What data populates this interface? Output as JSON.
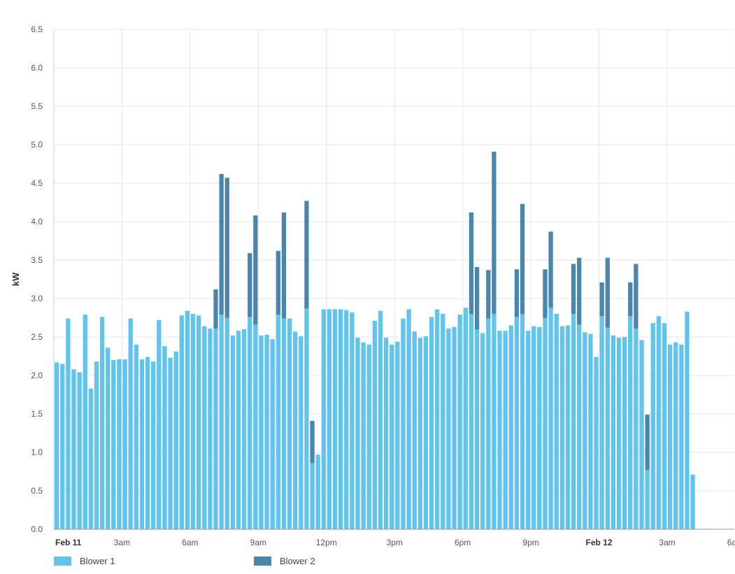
{
  "chart_data": {
    "type": "bar",
    "stacked": true,
    "title": "",
    "ylabel": "kW",
    "xlabel": "",
    "ylim": [
      0,
      6.5
    ],
    "yticks": [
      "0.0",
      "0.5",
      "1.0",
      "1.5",
      "2.0",
      "2.5",
      "3.0",
      "3.5",
      "4.0",
      "4.5",
      "5.0",
      "5.5",
      "6.0",
      "6.5"
    ],
    "xticks": [
      {
        "label": "Feb 11",
        "bold": true
      },
      {
        "label": "3am",
        "bold": false
      },
      {
        "label": "6am",
        "bold": false
      },
      {
        "label": "9am",
        "bold": false
      },
      {
        "label": "12pm",
        "bold": false
      },
      {
        "label": "3pm",
        "bold": false
      },
      {
        "label": "6pm",
        "bold": false
      },
      {
        "label": "9pm",
        "bold": false
      },
      {
        "label": "Feb 12",
        "bold": true
      },
      {
        "label": "3am",
        "bold": false
      },
      {
        "label": "6am",
        "bold": false
      }
    ],
    "grid": true,
    "legend_position": "bottom",
    "interval": "15 minutes",
    "x_start": "Feb 11 12am",
    "series": [
      {
        "name": "Blower 1",
        "color": "#62c3ec",
        "values": [
          2.17,
          2.15,
          2.74,
          2.08,
          2.04,
          2.79,
          1.83,
          2.18,
          2.76,
          2.36,
          2.2,
          2.21,
          2.21,
          2.74,
          2.4,
          2.21,
          2.24,
          2.18,
          2.72,
          2.38,
          2.23,
          2.31,
          2.78,
          2.84,
          2.8,
          2.78,
          2.64,
          2.61,
          2.61,
          2.79,
          2.75,
          2.52,
          2.58,
          2.6,
          2.76,
          2.66,
          2.52,
          2.53,
          2.47,
          2.79,
          2.74,
          2.74,
          2.57,
          2.51,
          2.87,
          0.86,
          0.97,
          2.86,
          2.86,
          2.86,
          2.86,
          2.85,
          2.82,
          2.49,
          2.43,
          2.4,
          2.71,
          2.84,
          2.49,
          2.4,
          2.44,
          2.74,
          2.86,
          2.57,
          2.49,
          2.51,
          2.76,
          2.86,
          2.8,
          2.61,
          2.63,
          2.79,
          2.88,
          2.8,
          2.6,
          2.55,
          2.74,
          2.8,
          2.58,
          2.58,
          2.65,
          2.76,
          2.8,
          2.58,
          2.64,
          2.63,
          2.75,
          2.88,
          2.8,
          2.64,
          2.65,
          2.8,
          2.66,
          2.56,
          2.54,
          2.24,
          2.77,
          2.62,
          2.52,
          2.49,
          2.5,
          2.77,
          2.61,
          2.46,
          0.77,
          2.68,
          2.77,
          2.68,
          2.4,
          2.43,
          2.4,
          2.83,
          0.71
        ]
      },
      {
        "name": "Blower 2",
        "color": "#4a86ab",
        "values": [
          0,
          0,
          0,
          0,
          0,
          0,
          0,
          0,
          0,
          0,
          0,
          0,
          0,
          0,
          0,
          0,
          0,
          0,
          0,
          0,
          0,
          0,
          0,
          0,
          0,
          0,
          0,
          0,
          0.51,
          1.83,
          1.82,
          0,
          0,
          0,
          0.83,
          1.42,
          0,
          0,
          0,
          0.83,
          1.38,
          0,
          0,
          0,
          1.4,
          0.55,
          0,
          0,
          0,
          0,
          0,
          0,
          0,
          0,
          0,
          0,
          0,
          0,
          0,
          0,
          0,
          0,
          0,
          0,
          0,
          0,
          0,
          0,
          0,
          0,
          0,
          0,
          0,
          1.32,
          0.81,
          0,
          0.63,
          2.11,
          0,
          0,
          0,
          0.62,
          1.43,
          0,
          0,
          0,
          0.63,
          0.99,
          0,
          0,
          0,
          0.65,
          0.87,
          0,
          0,
          0,
          0.44,
          0.91,
          0,
          0,
          0,
          0.44,
          0.84,
          0,
          0.72,
          0,
          0,
          0,
          0,
          0,
          0,
          0,
          0
        ]
      }
    ]
  },
  "legend": {
    "items": [
      {
        "label": "Blower 1",
        "color": "#62c3ec"
      },
      {
        "label": "Blower 2",
        "color": "#4a86ab"
      }
    ]
  }
}
